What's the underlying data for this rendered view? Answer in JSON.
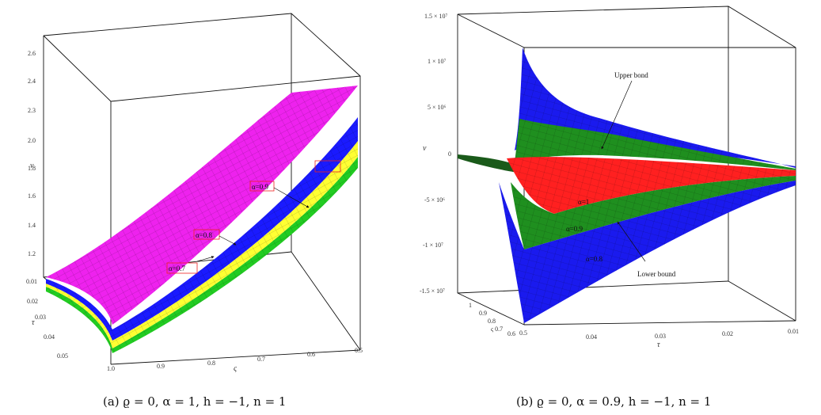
{
  "chart_data": [
    {
      "type": "surface",
      "caption": "(a) ϱ = 0, α = 1, h = −1, n = 1",
      "zlabel": "ν",
      "xlabel": "ς",
      "ylabel": "τ",
      "z_ticks": [
        "2.6",
        "2.4",
        "2.3",
        "2.0",
        "1.8",
        "1.6",
        "1.4",
        "1.2",
        "0.01"
      ],
      "x_ticks": [
        "1.0",
        "0.9",
        "0.8",
        "0.7",
        "0.6",
        "0.5"
      ],
      "y_ticks": [
        "0.02",
        "0.03",
        "0.04",
        "0.05"
      ],
      "series": [
        {
          "name": "α=0.7",
          "color": "#22cc22"
        },
        {
          "name": "α=0.8",
          "color": "#ffff33"
        },
        {
          "name": "α=0.9",
          "color": "#1a1aff"
        },
        {
          "name": "α=1",
          "color": "#ee22ee"
        }
      ],
      "annotations": [
        "α=0.9",
        "α=0.8",
        "α=0.7"
      ]
    },
    {
      "type": "surface",
      "caption": "(b) ϱ = 0, α = 0.9, h = −1, n = 1",
      "zlabel": "ν",
      "xlabel": "τ",
      "ylabel": "ς",
      "z_ticks": [
        "1.5 × 10⁷",
        "1 × 10⁷",
        "5 × 10⁶",
        "0",
        "-5 × 10⁶",
        "-1 × 10⁷",
        "-1.5 × 10⁷"
      ],
      "x_ticks": [
        "0.5",
        "0.04",
        "0.03",
        "0.02",
        "0.01"
      ],
      "y_ticks": [
        "1",
        "0.9",
        "0.8",
        "ς 0.7",
        "0.6"
      ],
      "series": [
        {
          "name": "α=1",
          "color": "#ff2020"
        },
        {
          "name": "α=0.9",
          "color": "#1f8f1f"
        },
        {
          "name": "α=0.8",
          "color": "#1a1aee"
        }
      ],
      "annotations": [
        "Upper bond",
        "Lower bound",
        "α=1",
        "α=0.9",
        "α=0.8"
      ]
    }
  ]
}
